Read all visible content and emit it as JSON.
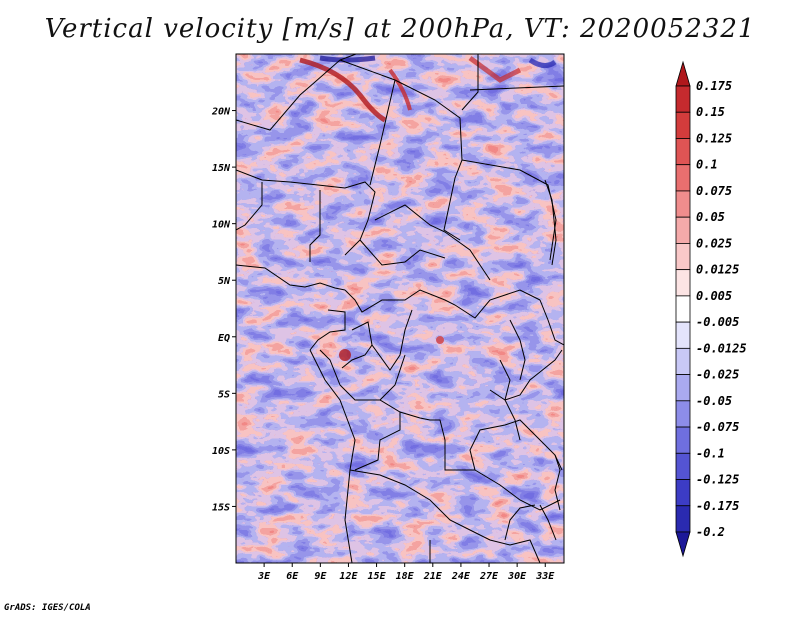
{
  "title": "Vertical velocity [m/s] at 200hPa, VT: 2020052321",
  "footer": "GrADS: IGES/COLA",
  "map": {
    "lon_range": [
      0,
      35
    ],
    "lat_range": [
      -20,
      25
    ],
    "lat_ticks": [
      {
        "value": 20,
        "label": "20N"
      },
      {
        "value": 15,
        "label": "15N"
      },
      {
        "value": 10,
        "label": "10N"
      },
      {
        "value": 5,
        "label": "5N"
      },
      {
        "value": 0,
        "label": "EQ"
      },
      {
        "value": -5,
        "label": "5S"
      },
      {
        "value": -10,
        "label": "10S"
      },
      {
        "value": -15,
        "label": "15S"
      }
    ],
    "lon_ticks": [
      {
        "value": 3,
        "label": "3E"
      },
      {
        "value": 6,
        "label": "6E"
      },
      {
        "value": 9,
        "label": "9E"
      },
      {
        "value": 12,
        "label": "12E"
      },
      {
        "value": 15,
        "label": "15E"
      },
      {
        "value": 18,
        "label": "18E"
      },
      {
        "value": 21,
        "label": "21E"
      },
      {
        "value": 24,
        "label": "24E"
      },
      {
        "value": 27,
        "label": "27E"
      },
      {
        "value": 30,
        "label": "30E"
      },
      {
        "value": 33,
        "label": "33E"
      }
    ]
  },
  "colorbar": {
    "labels": [
      "0.175",
      "0.15",
      "0.125",
      "0.1",
      "0.075",
      "0.05",
      "0.025",
      "0.0125",
      "0.005",
      "-0.005",
      "-0.0125",
      "-0.025",
      "-0.05",
      "-0.075",
      "-0.1",
      "-0.125",
      "-0.175",
      "-0.2"
    ],
    "colors": [
      "#b0181c",
      "#c52a2e",
      "#d33c3c",
      "#df5454",
      "#e96f6f",
      "#f08d8d",
      "#f5aaaa",
      "#f9c8c8",
      "#fce4e4",
      "#ffffff",
      "#e4e4fc",
      "#c8c8f6",
      "#aaaaf0",
      "#8d8de9",
      "#6f6fdf",
      "#5454d3",
      "#3c3cc5",
      "#2a2ab0",
      "#1c1898"
    ]
  }
}
